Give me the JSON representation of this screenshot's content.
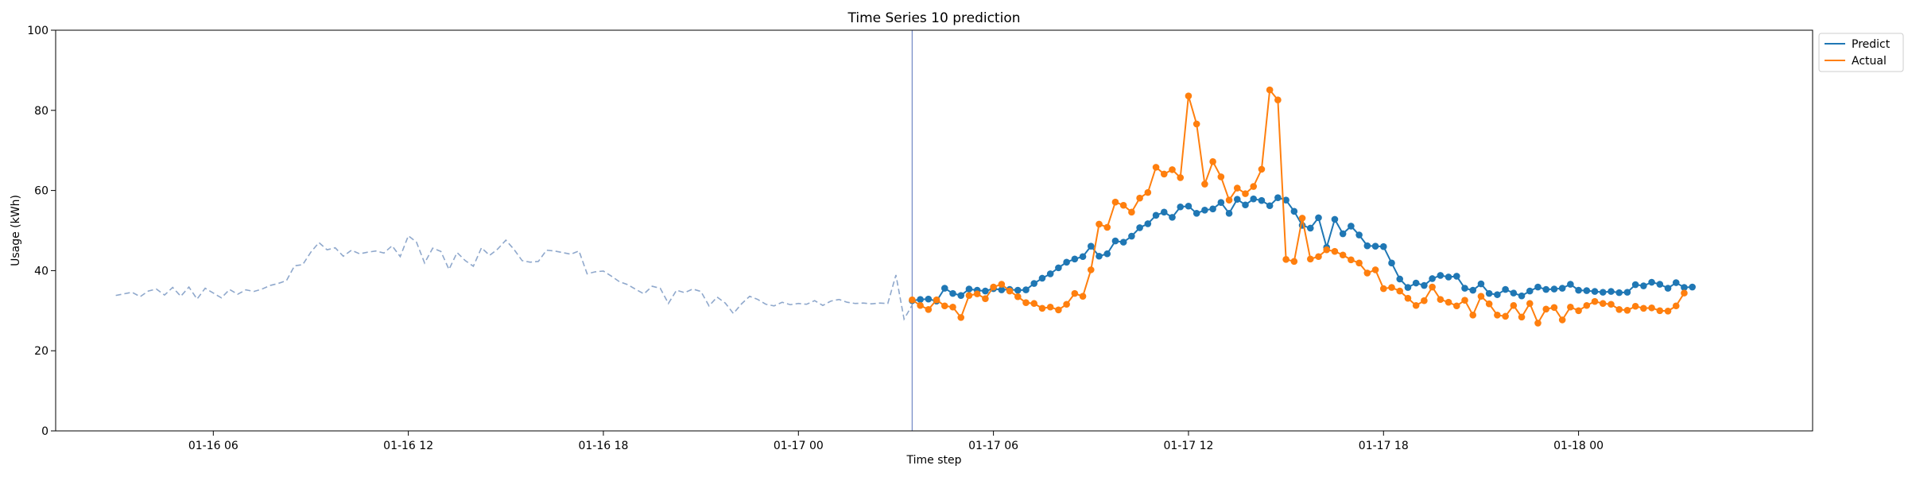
{
  "chart_data": {
    "type": "line",
    "title": "Time Series 10 prediction",
    "xlabel": "Time step",
    "ylabel": "Usage (kWh)",
    "ylim": [
      0,
      100
    ],
    "xlim": [
      "01-16 01:09",
      "01-18 07:12"
    ],
    "grid": false,
    "legend_position": "top-right outside",
    "y_ticks": [
      0,
      20,
      40,
      60,
      80,
      100
    ],
    "x_ticks": [
      {
        "t": "01-16 06:00",
        "label": "01-16 06"
      },
      {
        "t": "01-16 12:00",
        "label": "01-16 12"
      },
      {
        "t": "01-16 18:00",
        "label": "01-16 18"
      },
      {
        "t": "01-17 00:00",
        "label": "01-17 00"
      },
      {
        "t": "01-17 06:00",
        "label": "01-17 06"
      },
      {
        "t": "01-17 12:00",
        "label": "01-17 12"
      },
      {
        "t": "01-17 18:00",
        "label": "01-17 18"
      },
      {
        "t": "01-18 00:00",
        "label": "01-18 00"
      }
    ],
    "forecast_start": "01-17 03:30",
    "history": {
      "start": "01-16 03:00",
      "step_minutes": 15,
      "color": "#8fa8cc",
      "style": "dashed",
      "values": [
        33.8,
        34.2,
        34.6,
        33.5,
        34.9,
        35.4,
        33.9,
        35.8,
        33.6,
        35.9,
        32.9,
        35.6,
        34.4,
        33.2,
        35.3,
        34.1,
        35.2,
        34.8,
        35.4,
        36.3,
        36.8,
        37.5,
        41.2,
        41.5,
        44.6,
        47.0,
        45.2,
        45.7,
        43.6,
        45.1,
        44.2,
        44.6,
        44.9,
        44.4,
        46.2,
        43.5,
        48.7,
        47.1,
        41.9,
        45.6,
        44.8,
        40.3,
        44.5,
        42.5,
        41.1,
        45.7,
        43.8,
        45.4,
        47.6,
        45.3,
        42.5,
        42.1,
        42.3,
        45.1,
        44.9,
        44.5,
        44.1,
        44.9,
        39.2,
        39.7,
        39.9,
        38.6,
        37.2,
        36.5,
        35.3,
        34.2,
        36.1,
        35.6,
        31.8,
        35.1,
        34.5,
        35.4,
        34.8,
        31.2,
        33.4,
        31.9,
        29.3,
        31.7,
        33.6,
        32.8,
        31.6,
        31.2,
        32.1,
        31.5,
        31.8,
        31.6,
        32.5,
        31.3,
        32.4,
        32.8,
        32.1,
        31.8,
        31.9,
        31.7,
        31.9,
        31.8,
        38.9,
        27.9,
        31.4
      ]
    },
    "forecast": {
      "start": "01-17 03:30",
      "step_minutes": 15,
      "series": [
        {
          "name": "Predict",
          "color": "#1f77b4",
          "values": [
            32.5,
            32.8,
            32.9,
            32.4,
            35.6,
            34.3,
            33.8,
            35.4,
            35.1,
            34.9,
            35.5,
            35.2,
            35.3,
            35.1,
            35.2,
            36.8,
            38.1,
            39.2,
            40.7,
            42.1,
            42.9,
            43.5,
            46.1,
            43.6,
            44.2,
            47.4,
            47.1,
            48.6,
            50.7,
            51.7,
            53.8,
            54.6,
            53.3,
            55.9,
            56.1,
            54.3,
            55.1,
            55.4,
            57.0,
            54.3,
            57.8,
            56.4,
            57.9,
            57.5,
            56.2,
            58.2,
            57.6,
            54.8,
            51.3,
            50.6,
            53.2,
            45.8,
            52.8,
            49.2,
            51.1,
            48.9,
            46.2,
            46.1,
            46.0,
            41.9,
            37.9,
            35.8,
            36.9,
            36.3,
            38.0,
            38.8,
            38.4,
            38.6,
            35.6,
            35.1,
            36.7,
            34.3,
            34.0,
            35.3,
            34.4,
            33.7,
            34.9,
            35.9,
            35.3,
            35.4,
            35.6,
            36.6,
            35.1,
            35.0,
            34.8,
            34.6,
            34.8,
            34.5,
            34.6,
            36.5,
            36.2,
            37.1,
            36.6,
            35.6,
            37.0,
            35.8,
            35.9
          ]
        },
        {
          "name": "Actual",
          "color": "#ff7f0e",
          "values": [
            32.7,
            31.3,
            30.3,
            32.7,
            31.2,
            30.9,
            28.3,
            33.8,
            34.2,
            33.0,
            35.9,
            36.6,
            34.9,
            33.5,
            32.0,
            31.8,
            30.6,
            30.9,
            30.2,
            31.6,
            34.3,
            33.6,
            40.2,
            51.6,
            50.8,
            57.1,
            56.3,
            54.6,
            58.1,
            59.5,
            65.8,
            64.1,
            65.2,
            63.2,
            83.6,
            76.6,
            61.6,
            67.2,
            63.4,
            57.6,
            60.6,
            59.2,
            61.0,
            65.3,
            85.1,
            82.6,
            42.8,
            42.3,
            53.1,
            42.9,
            43.5,
            45.2,
            44.8,
            43.9,
            42.7,
            41.9,
            39.4,
            40.2,
            35.5,
            35.8,
            34.9,
            33.1,
            31.3,
            32.5,
            35.9,
            32.8,
            32.1,
            31.2,
            32.6,
            28.9,
            33.6,
            31.7,
            28.9,
            28.6,
            31.3,
            28.4,
            31.8,
            26.9,
            30.4,
            30.8,
            27.7,
            30.9,
            30.0,
            31.3,
            32.3,
            31.8,
            31.6,
            30.3,
            30.1,
            31.1,
            30.6,
            30.7,
            30.0,
            29.9,
            31.2,
            34.4
          ]
        }
      ]
    },
    "legend": {
      "items": [
        {
          "label": "Predict",
          "color": "#1f77b4"
        },
        {
          "label": "Actual",
          "color": "#ff7f0e"
        }
      ]
    }
  }
}
